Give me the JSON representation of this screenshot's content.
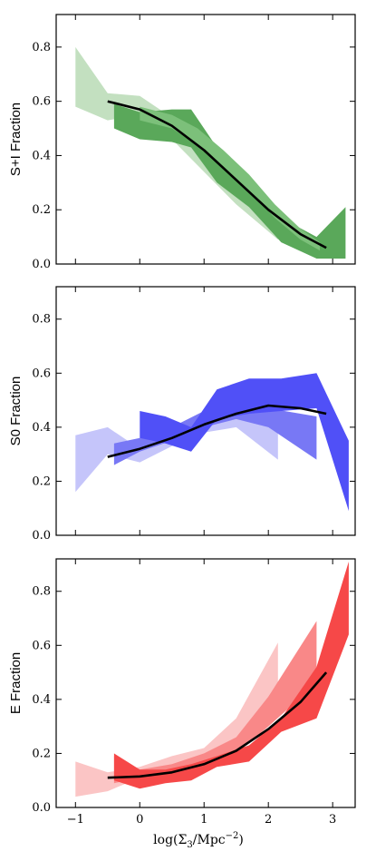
{
  "chart_data": [
    {
      "type": "area",
      "ylabel": "S+I Fraction",
      "ylim": [
        0.0,
        0.92
      ],
      "xlim": [
        -1.3,
        3.35
      ],
      "yticks": [
        0.0,
        0.2,
        0.4,
        0.6,
        0.8
      ],
      "ytick_labels": [
        "0.0",
        "0.2",
        "0.4",
        "0.6",
        "0.8"
      ],
      "xticks": [
        -1,
        0,
        1,
        2,
        3
      ],
      "xtick_labels": [
        "",
        "",
        "",
        "",
        ""
      ],
      "show_xlabel": false,
      "fit_curve": {
        "color": "#000000",
        "x": [
          -0.5,
          0.0,
          0.5,
          1.0,
          1.5,
          2.0,
          2.5,
          2.9
        ],
        "y": [
          0.6,
          0.57,
          0.51,
          0.42,
          0.31,
          0.2,
          0.11,
          0.06
        ]
      },
      "bands": [
        {
          "color": "#c3e0c0",
          "x": [
            -1.0,
            -0.5,
            0.0,
            0.5,
            1.0,
            1.5,
            2.0,
            2.15
          ],
          "lower": [
            0.58,
            0.53,
            0.55,
            0.46,
            0.34,
            0.22,
            0.12,
            0.09
          ],
          "upper": [
            0.8,
            0.63,
            0.62,
            0.54,
            0.44,
            0.33,
            0.2,
            0.15
          ]
        },
        {
          "color": "#5aa85a",
          "x": [
            -0.4,
            0.0,
            0.5,
            0.8,
            1.2,
            1.7,
            2.2,
            2.75,
            3.2
          ],
          "lower": [
            0.5,
            0.46,
            0.45,
            0.43,
            0.3,
            0.21,
            0.08,
            0.02,
            0.02
          ],
          "upper": [
            0.59,
            0.56,
            0.57,
            0.57,
            0.43,
            0.31,
            0.17,
            0.1,
            0.21
          ]
        },
        {
          "color": "#7cc07a",
          "x": [
            0.0,
            0.5,
            0.9,
            1.3,
            1.7,
            2.1,
            2.5,
            2.8
          ],
          "lower": [
            0.53,
            0.5,
            0.44,
            0.36,
            0.27,
            0.17,
            0.09,
            0.05
          ],
          "upper": [
            0.58,
            0.55,
            0.5,
            0.42,
            0.33,
            0.22,
            0.13,
            0.08
          ]
        }
      ]
    },
    {
      "type": "area",
      "ylabel": "S0 Fraction",
      "ylim": [
        0.0,
        0.92
      ],
      "xlim": [
        -1.3,
        3.35
      ],
      "yticks": [
        0.0,
        0.2,
        0.4,
        0.6,
        0.8
      ],
      "ytick_labels": [
        "0.0",
        "0.2",
        "0.4",
        "0.6",
        "0.8"
      ],
      "xticks": [
        -1,
        0,
        1,
        2,
        3
      ],
      "xtick_labels": [
        "",
        "",
        "",
        "",
        ""
      ],
      "show_xlabel": false,
      "fit_curve": {
        "color": "#000000",
        "x": [
          -0.5,
          0.0,
          0.5,
          1.0,
          1.5,
          2.0,
          2.5,
          2.9
        ],
        "y": [
          0.29,
          0.32,
          0.36,
          0.41,
          0.45,
          0.48,
          0.47,
          0.45
        ]
      },
      "bands": [
        {
          "color": "#c5c5fa",
          "x": [
            -1.0,
            -0.5,
            0.0,
            0.5,
            1.0,
            1.5,
            2.15
          ],
          "lower": [
            0.16,
            0.3,
            0.27,
            0.33,
            0.38,
            0.4,
            0.28
          ],
          "upper": [
            0.37,
            0.4,
            0.32,
            0.4,
            0.46,
            0.5,
            0.44
          ]
        },
        {
          "color": "#7878f5",
          "x": [
            -0.4,
            0.0,
            0.5,
            1.0,
            1.5,
            2.0,
            2.75
          ],
          "lower": [
            0.26,
            0.31,
            0.35,
            0.4,
            0.43,
            0.4,
            0.28
          ],
          "upper": [
            0.34,
            0.36,
            0.4,
            0.46,
            0.48,
            0.47,
            0.44
          ]
        },
        {
          "color": "#5050f7",
          "x": [
            0.0,
            0.4,
            0.8,
            1.2,
            1.7,
            2.2,
            2.75,
            3.25
          ],
          "lower": [
            0.36,
            0.34,
            0.31,
            0.43,
            0.45,
            0.46,
            0.47,
            0.09
          ],
          "upper": [
            0.46,
            0.44,
            0.4,
            0.54,
            0.58,
            0.58,
            0.6,
            0.35
          ]
        }
      ]
    },
    {
      "type": "area",
      "ylabel": "E Fraction",
      "ylim": [
        0.0,
        0.92
      ],
      "xlim": [
        -1.3,
        3.35
      ],
      "yticks": [
        0.0,
        0.2,
        0.4,
        0.6,
        0.8
      ],
      "ytick_labels": [
        "0.0",
        "0.2",
        "0.4",
        "0.6",
        "0.8"
      ],
      "xticks": [
        -1,
        0,
        1,
        2,
        3
      ],
      "xtick_labels": [
        "−1",
        "0",
        "1",
        "2",
        "3"
      ],
      "show_xlabel": true,
      "xlabel_parts": {
        "pre": "log(Σ",
        "sub": "3",
        "mid": "/Mpc",
        "sup": "−2",
        "post": ")"
      },
      "fit_curve": {
        "color": "#000000",
        "x": [
          -0.5,
          0.0,
          0.5,
          1.0,
          1.5,
          2.0,
          2.5,
          2.9
        ],
        "y": [
          0.11,
          0.115,
          0.13,
          0.16,
          0.21,
          0.29,
          0.39,
          0.5
        ]
      },
      "bands": [
        {
          "color": "#fbc5c5",
          "x": [
            -1.0,
            -0.5,
            0.0,
            0.5,
            1.0,
            1.5,
            2.15
          ],
          "lower": [
            0.04,
            0.06,
            0.11,
            0.15,
            0.19,
            0.25,
            0.44
          ],
          "upper": [
            0.17,
            0.13,
            0.15,
            0.19,
            0.22,
            0.33,
            0.61
          ]
        },
        {
          "color": "#f98888",
          "x": [
            -0.4,
            0.0,
            0.5,
            1.0,
            1.5,
            2.0,
            2.75
          ],
          "lower": [
            0.09,
            0.11,
            0.13,
            0.16,
            0.2,
            0.3,
            0.46
          ],
          "upper": [
            0.19,
            0.14,
            0.16,
            0.2,
            0.26,
            0.41,
            0.69
          ]
        },
        {
          "color": "#f64848",
          "x": [
            -0.4,
            0.0,
            0.4,
            0.8,
            1.2,
            1.7,
            2.2,
            2.75,
            3.25
          ],
          "lower": [
            0.1,
            0.07,
            0.09,
            0.1,
            0.15,
            0.17,
            0.28,
            0.33,
            0.64
          ],
          "upper": [
            0.2,
            0.14,
            0.14,
            0.16,
            0.19,
            0.23,
            0.33,
            0.52,
            0.91
          ]
        }
      ]
    }
  ]
}
